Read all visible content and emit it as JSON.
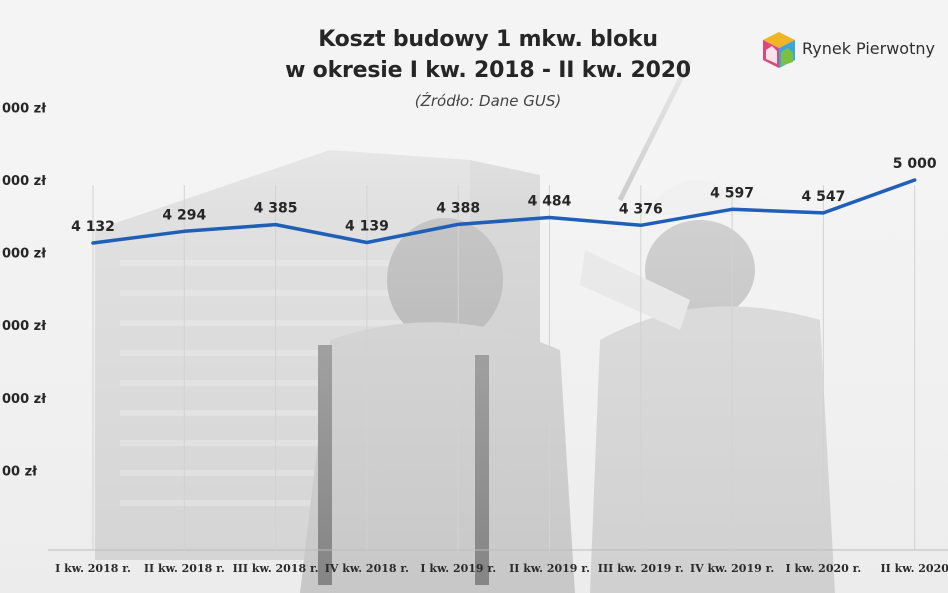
{
  "title_line1": "Koszt budowy 1 mkw. bloku",
  "title_line2": "w okresie I kw. 2018 - II kw. 2020",
  "source": "(Źródło: Dane GUS)",
  "logo_text": "Rynek Pierwotny",
  "colors": {
    "line": "#1f5fb8",
    "text": "#262626",
    "grid": "#cfcfcf"
  },
  "chart_data": {
    "type": "line",
    "title": "Koszt budowy 1 mkw. bloku w okresie I kw. 2018 - II kw. 2020",
    "categories": [
      "I kw. 2018 r.",
      "II kw. 2018 r.",
      "III kw. 2018 r.",
      "IV kw. 2018 r.",
      "I kw. 2019 r.",
      "II kw. 2019 r.",
      "III kw. 2019 r.",
      "IV kw. 2019 r.",
      "I kw. 2020 r.",
      "II kw. 2020"
    ],
    "values": [
      4132,
      4294,
      4385,
      4139,
      4388,
      4484,
      4376,
      4597,
      4547,
      5000
    ],
    "data_labels": [
      "4 132",
      "4 294",
      "4 385",
      "4 139",
      "4 388",
      "4 484",
      "4 376",
      "4 597",
      "4 547",
      "5 000"
    ],
    "ylim": [
      0,
      6000
    ],
    "y_tick_labels": [
      "000 zł",
      "000 zł",
      "000 zł",
      "000 zł",
      "000 zł",
      "00 zł"
    ],
    "y_tick_values": [
      6000,
      5000,
      4000,
      3000,
      2000,
      1000
    ],
    "grid": "vertical",
    "legend": "none"
  }
}
